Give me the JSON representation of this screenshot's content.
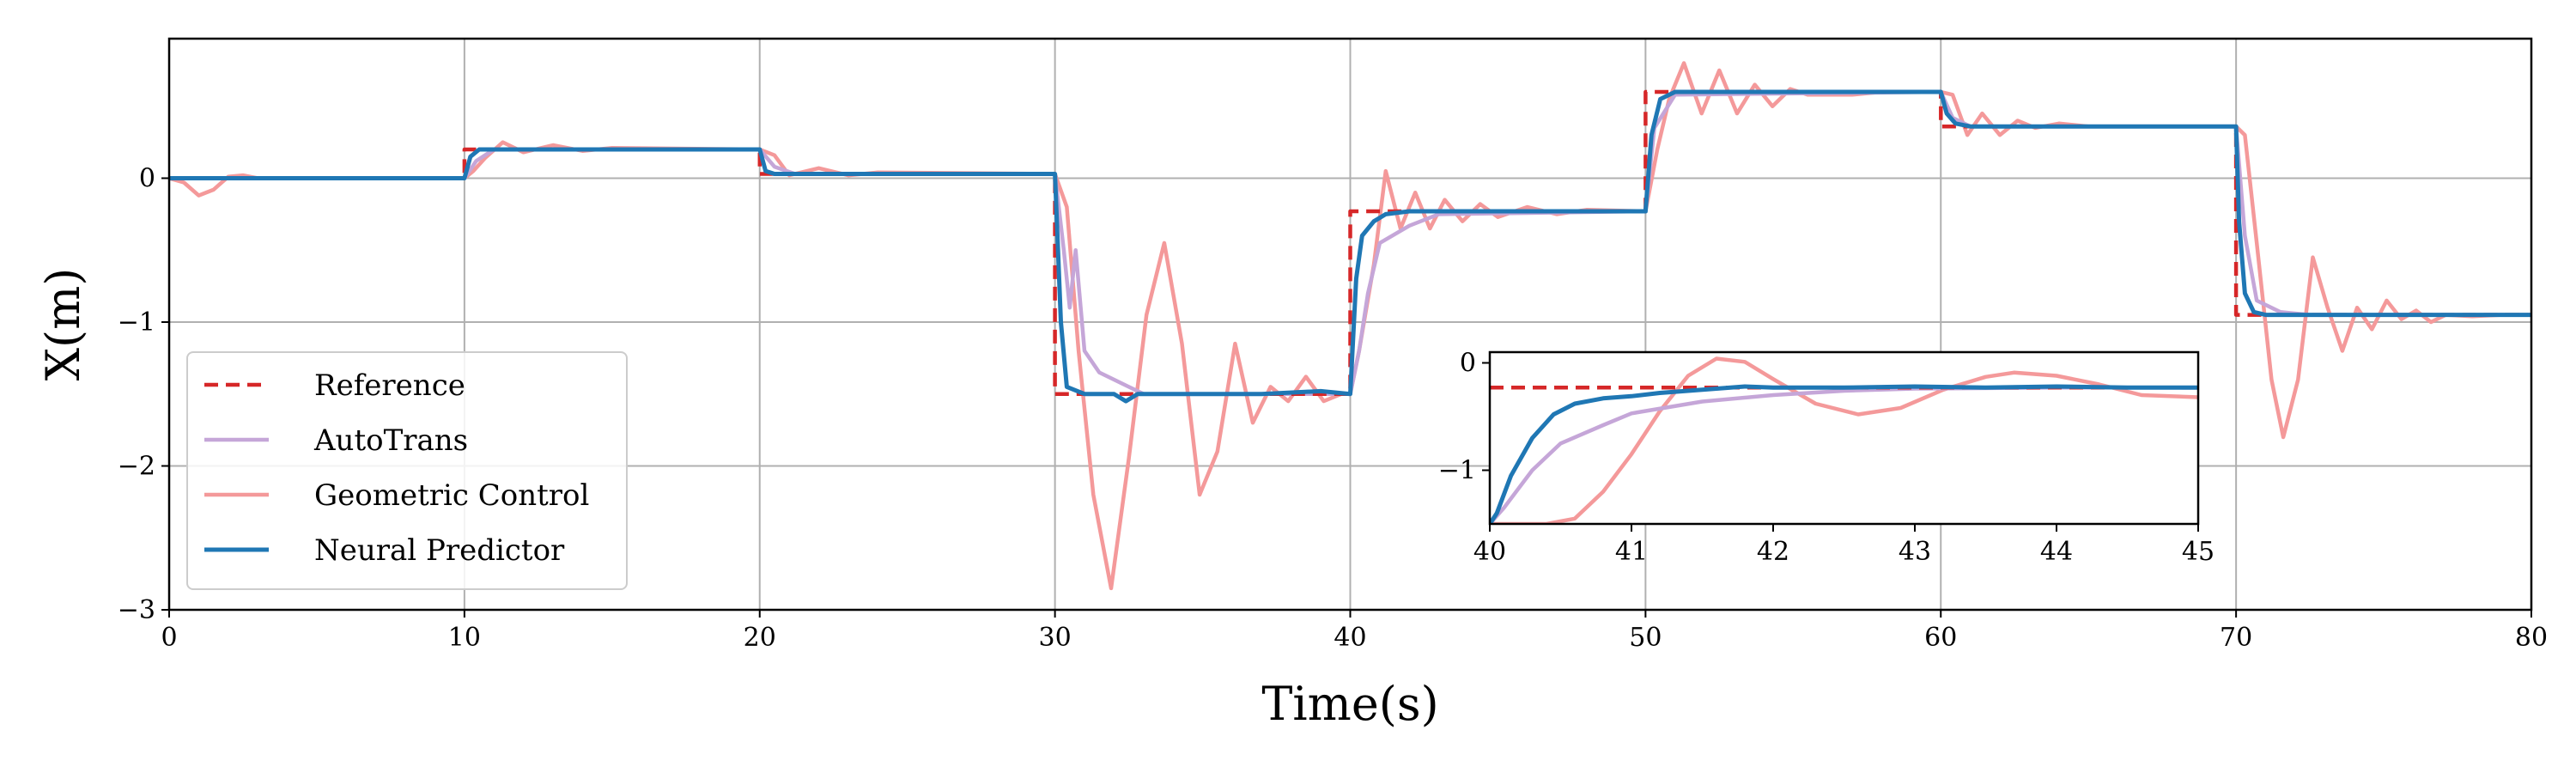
{
  "chart_data": [
    {
      "type": "line",
      "title": "",
      "xlabel": "Time(s)",
      "ylabel": "X(m)",
      "xlim": [
        0,
        80
      ],
      "ylim": [
        -3.0,
        0.97
      ],
      "xticks": [
        0,
        10,
        20,
        30,
        40,
        50,
        60,
        70,
        80
      ],
      "xtick_labels": [
        "0",
        "10",
        "20",
        "30",
        "40",
        "50",
        "60",
        "70",
        "80"
      ],
      "yticks": [
        0,
        -1,
        -2,
        -3
      ],
      "ytick_labels": [
        "0",
        "−1",
        "−2",
        "−3"
      ],
      "grid": true,
      "legend_position": "lower-left",
      "legend": [
        "Reference",
        "AutoTrans",
        "Geometric Control",
        "Neural Predictor"
      ],
      "colors": {
        "Reference": "#d62728",
        "AutoTrans": "#c5a6d8",
        "Geometric Control": "#f4999a",
        "Neural Predictor": "#1f77b4"
      },
      "series": [
        {
          "name": "Reference",
          "style": "dashed",
          "x": [
            0,
            10,
            10,
            20,
            20,
            30,
            30,
            40,
            40,
            50,
            50,
            60,
            60,
            70,
            70,
            80
          ],
          "values": [
            0,
            0,
            0.2,
            0.2,
            0.03,
            0.03,
            -1.5,
            -1.5,
            -0.23,
            -0.23,
            0.6,
            0.6,
            0.36,
            0.36,
            -0.95,
            -0.95
          ]
        },
        {
          "name": "AutoTrans",
          "x": [
            0,
            10,
            10.4,
            11,
            20,
            20.5,
            21.2,
            30,
            30.3,
            30.5,
            30.7,
            31,
            31.5,
            32.5,
            33,
            40,
            40.3,
            40.6,
            41,
            42,
            43,
            50,
            50.3,
            51,
            60,
            60.4,
            61,
            70,
            70.3,
            70.7,
            71.5,
            72.5,
            80
          ],
          "values": [
            0,
            0,
            0.12,
            0.2,
            0.2,
            0.08,
            0.03,
            0.03,
            -0.5,
            -0.9,
            -0.5,
            -1.2,
            -1.35,
            -1.45,
            -1.5,
            -1.5,
            -1.2,
            -0.8,
            -0.45,
            -0.33,
            -0.25,
            -0.23,
            0.35,
            0.58,
            0.6,
            0.42,
            0.36,
            0.36,
            -0.4,
            -0.85,
            -0.93,
            -0.95,
            -0.95
          ]
        },
        {
          "name": "Geometric Control",
          "x": [
            0,
            0.5,
            1,
            1.5,
            2,
            2.5,
            3,
            4,
            5,
            10,
            10.3,
            10.7,
            11.3,
            12,
            13,
            14,
            15,
            20,
            20.5,
            21,
            22,
            23,
            24,
            30,
            30.4,
            30.8,
            31.3,
            31.9,
            32.5,
            33.1,
            33.7,
            34.3,
            34.9,
            35.5,
            36.1,
            36.7,
            37.3,
            37.9,
            38.5,
            39.1,
            39.7,
            40,
            40.3,
            40.8,
            41.2,
            41.7,
            42.2,
            42.7,
            43.2,
            43.8,
            44.4,
            45,
            46,
            47,
            48,
            50,
            50.4,
            50.8,
            51.3,
            51.9,
            52.5,
            53.1,
            53.7,
            54.3,
            54.9,
            55.5,
            57,
            58,
            60,
            60.4,
            60.9,
            61.4,
            62,
            62.6,
            63.2,
            64,
            65,
            70,
            70.3,
            70.7,
            71.2,
            71.6,
            72.1,
            72.6,
            73.1,
            73.6,
            74.1,
            74.6,
            75.1,
            75.6,
            76.1,
            76.6,
            77.1,
            78,
            79,
            80
          ],
          "values": [
            0,
            -0.03,
            -0.12,
            -0.08,
            0.01,
            0.02,
            0.0,
            0.0,
            0.0,
            0.0,
            0.05,
            0.14,
            0.25,
            0.18,
            0.23,
            0.19,
            0.21,
            0.2,
            0.16,
            0.02,
            0.07,
            0.02,
            0.04,
            0.03,
            -0.2,
            -1.2,
            -2.2,
            -2.85,
            -1.95,
            -0.95,
            -0.45,
            -1.15,
            -2.2,
            -1.9,
            -1.15,
            -1.7,
            -1.45,
            -1.55,
            -1.38,
            -1.55,
            -1.5,
            -1.5,
            -1.2,
            -0.6,
            0.05,
            -0.35,
            -0.1,
            -0.35,
            -0.15,
            -0.3,
            -0.18,
            -0.27,
            -0.2,
            -0.25,
            -0.22,
            -0.23,
            0.2,
            0.55,
            0.8,
            0.45,
            0.75,
            0.45,
            0.65,
            0.5,
            0.62,
            0.58,
            0.58,
            0.6,
            0.6,
            0.58,
            0.3,
            0.45,
            0.3,
            0.4,
            0.35,
            0.38,
            0.36,
            0.36,
            0.3,
            -0.45,
            -1.4,
            -1.8,
            -1.4,
            -0.55,
            -0.9,
            -1.2,
            -0.9,
            -1.05,
            -0.85,
            -0.98,
            -0.92,
            -1.0,
            -0.95,
            -0.96,
            -0.95,
            -0.95
          ]
        },
        {
          "name": "Neural Predictor",
          "x": [
            0,
            10,
            10.2,
            10.5,
            11,
            20,
            20.2,
            20.5,
            30,
            30.2,
            30.4,
            31,
            32,
            32.4,
            32.8,
            33,
            35,
            37,
            39,
            40,
            40.2,
            40.4,
            40.8,
            41.2,
            42,
            45,
            50,
            50.2,
            50.5,
            51,
            55,
            60,
            60.2,
            60.5,
            61,
            70,
            70.1,
            70.3,
            70.6,
            71,
            71.5,
            72.5,
            75,
            80
          ],
          "values": [
            0,
            0,
            0.15,
            0.2,
            0.2,
            0.2,
            0.05,
            0.03,
            0.03,
            -1.0,
            -1.45,
            -1.5,
            -1.5,
            -1.55,
            -1.5,
            -1.5,
            -1.5,
            -1.5,
            -1.48,
            -1.5,
            -0.7,
            -0.4,
            -0.3,
            -0.25,
            -0.23,
            -0.23,
            -0.23,
            0.3,
            0.55,
            0.6,
            0.6,
            0.6,
            0.45,
            0.38,
            0.36,
            0.36,
            -0.3,
            -0.8,
            -0.93,
            -0.95,
            -0.95,
            -0.95,
            -0.95,
            -0.95
          ]
        }
      ]
    },
    {
      "type": "line",
      "title": "",
      "xlabel": "",
      "ylabel": "",
      "xlim": [
        40,
        45
      ],
      "ylim": [
        -1.5,
        0.1
      ],
      "xticks": [
        40,
        41,
        42,
        43,
        44,
        45
      ],
      "xtick_labels": [
        "40",
        "41",
        "42",
        "43",
        "44",
        "45"
      ],
      "yticks": [
        0,
        -1
      ],
      "ytick_labels": [
        "0",
        "−1"
      ],
      "grid": false,
      "series": [
        {
          "name": "Reference",
          "style": "dashed",
          "x": [
            40,
            45
          ],
          "values": [
            -0.23,
            -0.23
          ]
        },
        {
          "name": "AutoTrans",
          "x": [
            40,
            40.1,
            40.3,
            40.5,
            40.8,
            41,
            41.5,
            42,
            42.5,
            43,
            44,
            45
          ],
          "values": [
            -1.5,
            -1.35,
            -1.0,
            -0.75,
            -0.58,
            -0.47,
            -0.36,
            -0.3,
            -0.26,
            -0.24,
            -0.23,
            -0.23
          ]
        },
        {
          "name": "Geometric Control",
          "x": [
            40,
            40.2,
            40.4,
            40.6,
            40.8,
            41.0,
            41.2,
            41.4,
            41.6,
            41.8,
            42.0,
            42.3,
            42.6,
            42.9,
            43.2,
            43.5,
            43.7,
            44.0,
            44.3,
            44.6,
            45
          ],
          "values": [
            -1.5,
            -1.5,
            -1.5,
            -1.45,
            -1.2,
            -0.85,
            -0.45,
            -0.12,
            0.04,
            0.01,
            -0.15,
            -0.38,
            -0.48,
            -0.42,
            -0.25,
            -0.13,
            -0.09,
            -0.12,
            -0.2,
            -0.3,
            -0.32
          ]
        },
        {
          "name": "Neural Predictor",
          "x": [
            40,
            40.05,
            40.15,
            40.3,
            40.45,
            40.6,
            40.8,
            41.0,
            41.2,
            41.5,
            41.8,
            42.0,
            42.5,
            43,
            43.5,
            44,
            44.5,
            45
          ],
          "values": [
            -1.5,
            -1.4,
            -1.05,
            -0.7,
            -0.48,
            -0.38,
            -0.33,
            -0.31,
            -0.28,
            -0.25,
            -0.22,
            -0.23,
            -0.23,
            -0.22,
            -0.23,
            -0.22,
            -0.23,
            -0.23
          ]
        }
      ]
    }
  ]
}
